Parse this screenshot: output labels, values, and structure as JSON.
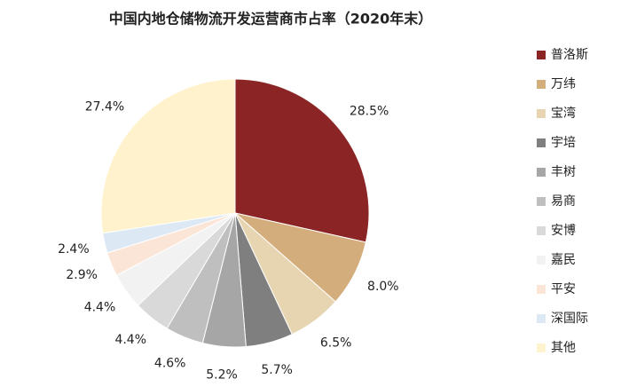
{
  "chart_data": {
    "type": "pie",
    "title": "中国内地仓储物流开发运营商市占率（2020年末）",
    "categories": [
      "普洛斯",
      "万纬",
      "宝湾",
      "宇培",
      "丰树",
      "易商",
      "安博",
      "嘉民",
      "平安",
      "深国际",
      "其他"
    ],
    "values": [
      28.5,
      8.0,
      6.5,
      5.7,
      5.2,
      4.6,
      4.4,
      4.4,
      2.9,
      2.4,
      27.4
    ],
    "value_labels": [
      "28.5%",
      "8.0%",
      "6.5%",
      "5.7%",
      "5.2%",
      "4.6%",
      "4.4%",
      "4.4%",
      "2.9%",
      "2.4%",
      "27.4%"
    ],
    "colors": [
      "#8b2525",
      "#d4ad7c",
      "#e6d5b0",
      "#7f7f7f",
      "#a6a6a6",
      "#bfbfbf",
      "#d9d9d9",
      "#f2f2f2",
      "#fbe5d6",
      "#dde8f5",
      "#fff2cc"
    ],
    "legend": "right"
  }
}
